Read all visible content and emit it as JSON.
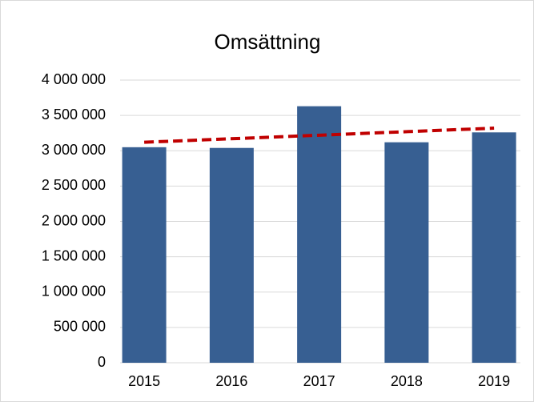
{
  "chart_data": {
    "type": "bar",
    "title": "Omsättning",
    "categories": [
      "2015",
      "2016",
      "2017",
      "2018",
      "2019"
    ],
    "values": [
      3050000,
      3040000,
      3630000,
      3120000,
      3260000
    ],
    "color": "#375f92",
    "ylim": [
      0,
      4000000
    ],
    "yticks": [
      0,
      {
        "value": 500000,
        "label": "500 000"
      },
      {
        "value": 1000000,
        "label": "1 000 000"
      },
      {
        "value": 1500000,
        "label": "1 500 000"
      },
      {
        "value": 2000000,
        "label": "2 000 000"
      },
      {
        "value": 2500000,
        "label": "2 500 000"
      },
      {
        "value": 3000000,
        "label": "3 000 000"
      },
      {
        "value": 3500000,
        "label": "3 500 000"
      },
      {
        "value": 4000000,
        "label": "4 000 000"
      }
    ],
    "grid": true,
    "trendline": {
      "type": "linear",
      "color": "#c00000"
    }
  }
}
